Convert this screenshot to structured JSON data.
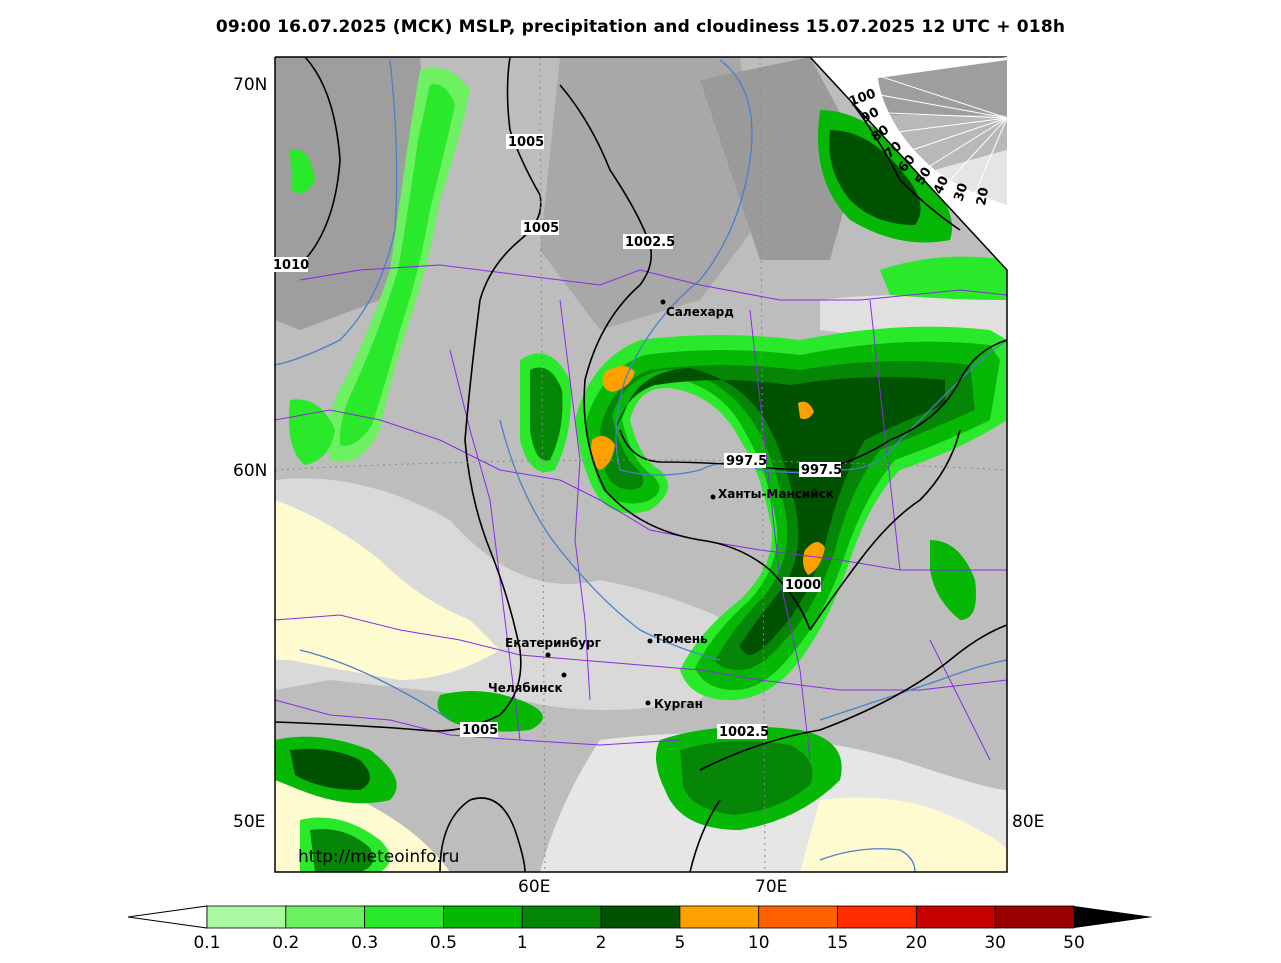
{
  "title": "09:00 16.07.2025 (МСК) MSLP, precipitation and cloudiness 15.07.2025 12 UTC + 018h",
  "watermark": "http://meteoinfo.ru",
  "axes": {
    "lat_70": "70N",
    "lat_60": "60N",
    "lat_50": "50E",
    "lon_60": "60E",
    "lon_70": "70E",
    "lon_80": "80E"
  },
  "isobars": {
    "i1": "1005",
    "i2": "1005",
    "i3": "1002.5",
    "i4": "1010",
    "i5": "997.5",
    "i6": "997.5",
    "i7": "1000",
    "i8": "1005",
    "i9": "1002.5"
  },
  "cities": {
    "salekhard": "Салехард",
    "khanty": "Ханты-Мансийск",
    "ekb": "Екатеринбург",
    "tyumen": "Тюмень",
    "chelyabinsk": "Челябинск",
    "kurgan": "Курган"
  },
  "cloud_scale": {
    "c100": "100",
    "c90": "90",
    "c80": "80",
    "c70": "70",
    "c60": "60",
    "c50": "50",
    "c40": "40",
    "c30": "30",
    "c20": "20"
  },
  "colorbar": {
    "labels": [
      "0.1",
      "0.2",
      "0.3",
      "0.5",
      "1",
      "2",
      "5",
      "10",
      "15",
      "20",
      "30",
      "50"
    ],
    "colors": [
      "#aaf9a0",
      "#6df062",
      "#2ae82a",
      "#06b706",
      "#068606",
      "#005200",
      "#ffa000",
      "#ff6000",
      "#ff2c00",
      "#c80000",
      "#9a0000"
    ]
  },
  "colors": {
    "isobar": "#000000",
    "border": "#8a2be2",
    "river": "#4a7fc9",
    "low_cloud": "#fffbd0"
  }
}
